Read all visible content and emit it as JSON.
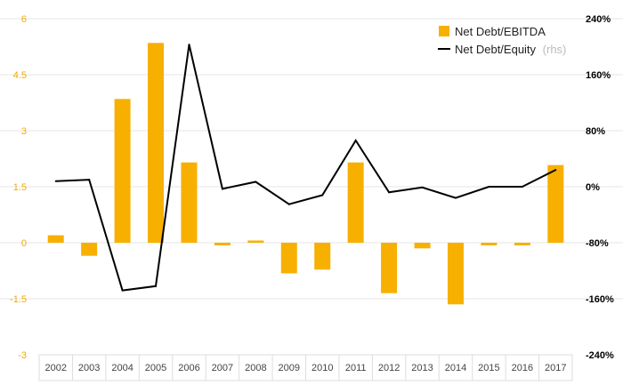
{
  "chart_data": {
    "type": "bar+line",
    "categories": [
      "2002",
      "2003",
      "2004",
      "2005",
      "2006",
      "2007",
      "2008",
      "2009",
      "2010",
      "2011",
      "2012",
      "2013",
      "2014",
      "2015",
      "2016",
      "2017"
    ],
    "series": [
      {
        "name": "Net Debt/EBITDA",
        "type": "bar",
        "axis": "left",
        "color": "#f7b000",
        "values": [
          0.2,
          -0.35,
          3.85,
          5.35,
          2.15,
          -0.07,
          0.06,
          -0.82,
          -0.72,
          2.15,
          -1.35,
          -0.15,
          -1.65,
          -0.07,
          -0.07,
          2.08
        ]
      },
      {
        "name": "Net Debt/Equity",
        "name_note": "(rhs)",
        "type": "line",
        "axis": "right",
        "color": "#000000",
        "values": [
          8,
          10,
          -148,
          -142,
          203,
          -3,
          7,
          -25,
          -12,
          66,
          -8,
          -1,
          -16,
          0,
          0,
          24
        ]
      }
    ],
    "y_left": {
      "ticks": [
        "6",
        "4.5",
        "3",
        "1.5",
        "0",
        "-1.5",
        "-3"
      ],
      "lim": [
        -3,
        6
      ]
    },
    "y_right": {
      "ticks": [
        "240%",
        "160%",
        "80%",
        "0%",
        "-80%",
        "-160%",
        "-240%"
      ],
      "lim": [
        -240,
        240
      ]
    },
    "grid": true,
    "legend": "top-right"
  }
}
